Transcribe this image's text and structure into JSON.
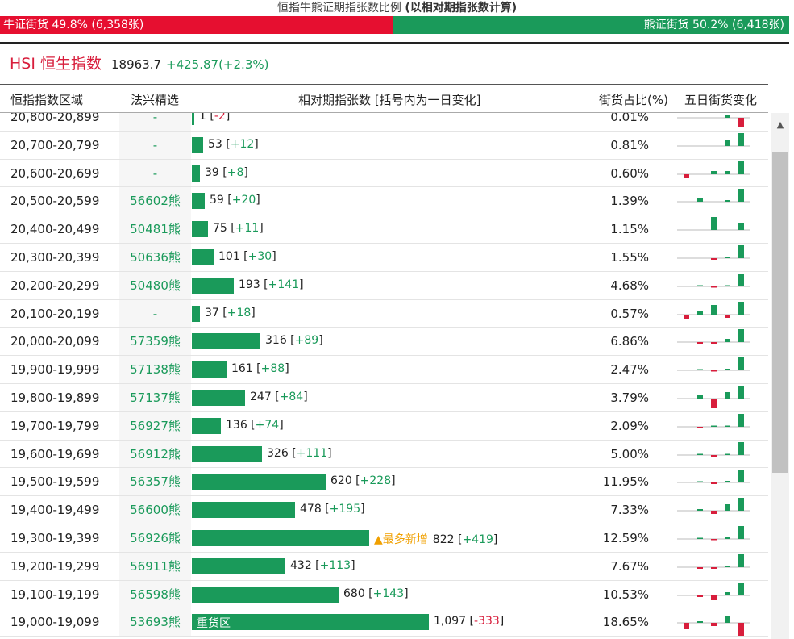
{
  "ratio": {
    "title_main": "恒指牛熊证期指张数比例",
    "title_note": "(以相对期指张数计算)",
    "bull_label": "牛证街货 49.8% (6,358张)",
    "bear_label": "熊证街货 50.2% (6,418张)",
    "bull_pct": 49.8,
    "bear_pct": 50.2
  },
  "index": {
    "name": "HSI 恒生指数",
    "value": "18963.7",
    "change": "+425.87(+2.3%)"
  },
  "table": {
    "headers": {
      "range": "恒指指数区域",
      "pick": "法兴精选",
      "count": "相对期指张数 [括号内为一日变化]",
      "share": "街货占比(%)",
      "trend": "五日街货变化"
    },
    "max_count": 1097,
    "rows": [
      {
        "range": "20,800-20,899",
        "pick": "-",
        "count": 1,
        "count_text": "1",
        "change": "-2",
        "share": "0.01%",
        "tag": "",
        "spark": [
          0,
          0,
          0,
          1,
          -3
        ]
      },
      {
        "range": "20,700-20,799",
        "pick": "-",
        "count": 53,
        "count_text": "53",
        "change": "+12",
        "share": "0.81%",
        "tag": "",
        "spark": [
          0,
          0,
          0,
          2,
          4
        ]
      },
      {
        "range": "20,600-20,699",
        "pick": "-",
        "count": 39,
        "count_text": "39",
        "change": "+8",
        "share": "0.60%",
        "tag": "",
        "spark": [
          -1,
          0,
          1,
          1,
          4
        ]
      },
      {
        "range": "20,500-20,599",
        "pick": "56602熊",
        "count": 59,
        "count_text": "59",
        "change": "+20",
        "share": "1.39%",
        "tag": "",
        "spark": [
          0,
          1,
          0,
          0.5,
          4
        ]
      },
      {
        "range": "20,400-20,499",
        "pick": "50481熊",
        "count": 75,
        "count_text": "75",
        "change": "+11",
        "share": "1.15%",
        "tag": "",
        "spark": [
          0,
          0,
          4,
          0,
          2
        ]
      },
      {
        "range": "20,300-20,399",
        "pick": "50636熊",
        "count": 101,
        "count_text": "101",
        "change": "+30",
        "share": "1.55%",
        "tag": "",
        "spark": [
          0,
          0,
          -0.5,
          0.3,
          4
        ]
      },
      {
        "range": "20,200-20,299",
        "pick": "50480熊",
        "count": 193,
        "count_text": "193",
        "change": "+141",
        "share": "4.68%",
        "tag": "",
        "spark": [
          0,
          0.3,
          -0.3,
          0.3,
          4
        ]
      },
      {
        "range": "20,100-20,199",
        "pick": "-",
        "count": 37,
        "count_text": "37",
        "change": "+18",
        "share": "0.57%",
        "tag": "",
        "spark": [
          -1.5,
          1,
          3,
          -1,
          4
        ]
      },
      {
        "range": "20,000-20,099",
        "pick": "57359熊",
        "count": 316,
        "count_text": "316",
        "change": "+89",
        "share": "6.86%",
        "tag": "",
        "spark": [
          0,
          -0.5,
          -0.5,
          1,
          4
        ]
      },
      {
        "range": "19,900-19,999",
        "pick": "57138熊",
        "count": 161,
        "count_text": "161",
        "change": "+88",
        "share": "2.47%",
        "tag": "",
        "spark": [
          0,
          0.3,
          -0.3,
          0.5,
          4
        ]
      },
      {
        "range": "19,800-19,899",
        "pick": "57137熊",
        "count": 247,
        "count_text": "247",
        "change": "+84",
        "share": "3.79%",
        "tag": "",
        "spark": [
          0,
          1,
          -3,
          2,
          4
        ]
      },
      {
        "range": "19,700-19,799",
        "pick": "56927熊",
        "count": 136,
        "count_text": "136",
        "change": "+74",
        "share": "2.09%",
        "tag": "",
        "spark": [
          0,
          -0.5,
          0.3,
          0.3,
          4
        ]
      },
      {
        "range": "19,600-19,699",
        "pick": "56912熊",
        "count": 326,
        "count_text": "326",
        "change": "+111",
        "share": "5.00%",
        "tag": "",
        "spark": [
          0,
          0.3,
          -0.5,
          0.3,
          4
        ]
      },
      {
        "range": "19,500-19,599",
        "pick": "56357熊",
        "count": 620,
        "count_text": "620",
        "change": "+228",
        "share": "11.95%",
        "tag": "",
        "spark": [
          0,
          0.3,
          -0.5,
          0.5,
          4
        ]
      },
      {
        "range": "19,400-19,499",
        "pick": "56600熊",
        "count": 478,
        "count_text": "478",
        "change": "+195",
        "share": "7.33%",
        "tag": "",
        "spark": [
          0,
          0.5,
          -1,
          2,
          4
        ]
      },
      {
        "range": "19,300-19,399",
        "pick": "56926熊",
        "count": 822,
        "count_text": "822",
        "change": "+419",
        "share": "12.59%",
        "tag": "▲最多新增",
        "spark": [
          0,
          0.3,
          -0.3,
          0.5,
          4
        ]
      },
      {
        "range": "19,200-19,299",
        "pick": "56911熊",
        "count": 432,
        "count_text": "432",
        "change": "+113",
        "share": "7.67%",
        "tag": "",
        "spark": [
          0,
          -0.5,
          -0.5,
          0.5,
          4
        ]
      },
      {
        "range": "19,100-19,199",
        "pick": "56598熊",
        "count": 680,
        "count_text": "680",
        "change": "+143",
        "share": "10.53%",
        "tag": "",
        "spark": [
          0,
          -0.5,
          -1.5,
          1,
          4
        ]
      },
      {
        "range": "19,000-19,099",
        "pick": "53693熊",
        "count": 1097,
        "count_text": "1,097",
        "change": "-333",
        "share": "18.65%",
        "tag": "",
        "bar_label": "重货区",
        "spark": [
          -2,
          0.5,
          -1,
          2,
          -4
        ]
      }
    ]
  },
  "colors": {
    "bull": "#e60f30",
    "bear": "#1a9a5a",
    "positive": "#1a9a5a",
    "negative": "#d81e3c",
    "highlight": "#f0a000"
  },
  "icons": {
    "scroll_up": "caret-up-icon"
  }
}
